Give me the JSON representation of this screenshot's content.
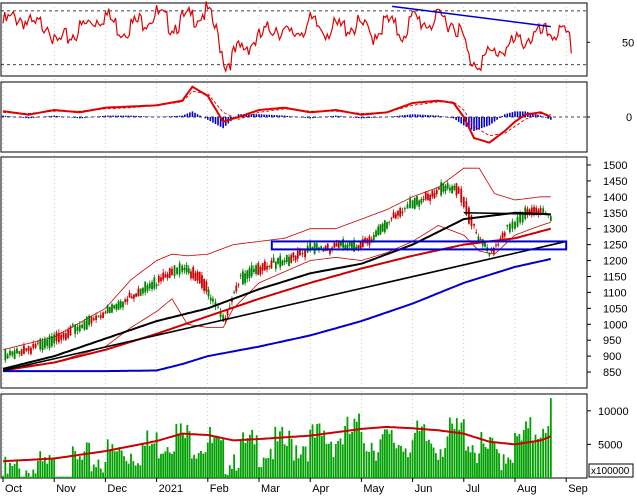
{
  "chart_data": [
    {
      "type": "line",
      "panel": "oscillator",
      "ylim": [
        20,
        85
      ],
      "yticks": [
        50
      ],
      "reference_lines": [
        78,
        30
      ],
      "series": [
        {
          "color": "#e00000",
          "x_months": [
            0,
            0.3,
            0.6,
            0.9,
            1.0,
            1.3,
            1.6,
            2.0,
            2.3,
            2.6,
            3.0,
            3.3,
            3.6,
            4.0,
            4.2,
            4.35,
            4.6,
            5.0,
            5.3,
            5.6,
            6.0,
            6.3,
            6.6,
            7.0,
            7.2,
            7.5,
            7.8,
            8.0,
            8.3,
            8.6,
            8.85,
            9.0,
            9.1,
            9.3,
            9.6,
            9.9,
            10.2,
            10.5,
            10.8,
            11.0,
            11.1
          ],
          "values": [
            72,
            78,
            68,
            74,
            52,
            60,
            70,
            80,
            66,
            72,
            80,
            70,
            76,
            82,
            60,
            35,
            48,
            58,
            70,
            60,
            72,
            66,
            68,
            70,
            60,
            74,
            62,
            76,
            72,
            76,
            70,
            58,
            40,
            38,
            46,
            52,
            58,
            62,
            64,
            60,
            52
          ]
        }
      ],
      "trendline": {
        "color": "#0000cc",
        "x_months": [
          7.6,
          10.7
        ],
        "values": [
          82,
          64
        ]
      }
    },
    {
      "type": "line",
      "panel": "macd",
      "ylim": [
        -30,
        30
      ],
      "yticks": [
        0
      ],
      "series": [
        {
          "color": "#e00000",
          "x_months": [
            0,
            0.5,
            1.0,
            1.5,
            2.0,
            2.5,
            3.0,
            3.5,
            3.7,
            4.0,
            4.3,
            4.6,
            5.0,
            5.5,
            6.0,
            6.5,
            7.0,
            7.5,
            8.0,
            8.5,
            8.8,
            9.0,
            9.2,
            9.5,
            9.8,
            10.0,
            10.2,
            10.5,
            10.7
          ],
          "values": [
            5,
            2,
            6,
            4,
            8,
            9,
            10,
            14,
            26,
            18,
            -4,
            0,
            6,
            8,
            4,
            6,
            2,
            4,
            12,
            14,
            12,
            0,
            -18,
            -22,
            -12,
            -4,
            2,
            4,
            0
          ]
        },
        {
          "color": "#e00000",
          "dashed": true,
          "x_months": [
            0,
            0.5,
            1.0,
            1.5,
            2.0,
            2.5,
            3.0,
            3.5,
            3.7,
            4.0,
            4.3,
            4.6,
            5.0,
            5.5,
            6.0,
            6.5,
            7.0,
            7.5,
            8.0,
            8.5,
            8.8,
            9.0,
            9.2,
            9.5,
            9.8,
            10.0,
            10.2,
            10.5,
            10.7
          ],
          "values": [
            4,
            3,
            5,
            5,
            7,
            8,
            10,
            13,
            22,
            20,
            4,
            -2,
            4,
            7,
            5,
            5,
            3,
            4,
            10,
            13,
            13,
            6,
            -8,
            -16,
            -14,
            -8,
            -2,
            3,
            2
          ]
        }
      ],
      "histogram_color": "#0000cc"
    },
    {
      "type": "line",
      "panel": "price",
      "ylim": [
        800,
        1525
      ],
      "yticks": [
        850,
        900,
        950,
        1000,
        1050,
        1100,
        1150,
        1200,
        1250,
        1300,
        1350,
        1400,
        1450,
        1500
      ],
      "ohlc_colors": {
        "up": "#008000",
        "down": "#cc0000"
      },
      "closes": {
        "x_months": [
          0,
          0.5,
          1.0,
          1.5,
          2.0,
          2.3,
          2.6,
          3.0,
          3.3,
          3.5,
          3.8,
          4.1,
          4.3,
          4.6,
          4.9,
          5.2,
          5.5,
          5.8,
          6.0,
          6.3,
          6.6,
          6.9,
          7.2,
          7.5,
          7.8,
          8.0,
          8.3,
          8.6,
          8.9,
          9.0,
          9.2,
          9.5,
          9.8,
          10.0,
          10.2,
          10.5,
          10.7
        ],
        "values": [
          910,
          930,
          965,
          1000,
          1050,
          1080,
          1110,
          1150,
          1180,
          1190,
          1160,
          1080,
          1020,
          1150,
          1180,
          1195,
          1210,
          1230,
          1250,
          1245,
          1260,
          1255,
          1280,
          1330,
          1370,
          1390,
          1410,
          1440,
          1430,
          1380,
          1300,
          1230,
          1300,
          1330,
          1360,
          1370,
          1335
        ]
      },
      "series": [
        {
          "name": "",
          "color": "#000000",
          "x_months": [
            0,
            1,
            2,
            3,
            4,
            5,
            6,
            7,
            8,
            9,
            10,
            10.7
          ],
          "values": [
            860,
            900,
            955,
            1010,
            1050,
            1110,
            1160,
            1190,
            1250,
            1330,
            1350,
            1345
          ]
        },
        {
          "name": "",
          "color": "#cc0000",
          "x_months": [
            0,
            1,
            2,
            3,
            4,
            5,
            6,
            7,
            8,
            9,
            10,
            10.7
          ],
          "values": [
            855,
            880,
            920,
            970,
            1025,
            1080,
            1130,
            1175,
            1215,
            1250,
            1270,
            1300
          ]
        },
        {
          "name": "",
          "color": "#0000cc",
          "x_months": [
            0,
            1,
            2,
            3,
            3.5,
            4,
            5,
            6,
            7,
            8,
            9,
            10,
            10.7
          ],
          "values": [
            853,
            853,
            853,
            855,
            875,
            900,
            930,
            965,
            1010,
            1065,
            1130,
            1180,
            1205
          ]
        }
      ],
      "bollinger": {
        "color": "#cc0000",
        "upper": {
          "x_months": [
            0,
            1,
            2,
            2.5,
            3,
            3.3,
            3.6,
            4.0,
            4.5,
            5,
            5.5,
            6,
            6.5,
            7,
            7.5,
            8,
            8.5,
            9,
            9.3,
            9.6,
            10,
            10.5,
            10.7
          ],
          "values": [
            920,
            960,
            1050,
            1140,
            1200,
            1220,
            1215,
            1220,
            1250,
            1260,
            1270,
            1300,
            1300,
            1330,
            1360,
            1400,
            1430,
            1490,
            1490,
            1410,
            1390,
            1400,
            1400
          ]
        },
        "lower": {
          "x_months": [
            0,
            1,
            2,
            2.5,
            3,
            3.3,
            3.6,
            4.0,
            4.3,
            4.5,
            5,
            5.5,
            6,
            6.5,
            7,
            7.5,
            8,
            8.5,
            9,
            9.3,
            9.6,
            10,
            10.5,
            10.7
          ],
          "values": [
            860,
            880,
            930,
            990,
            1040,
            1080,
            1000,
            990,
            990,
            1050,
            1130,
            1165,
            1200,
            1210,
            1200,
            1225,
            1260,
            1310,
            1280,
            1230,
            1220,
            1280,
            1310,
            1320
          ]
        }
      },
      "trendlines": [
        {
          "color": "#000000",
          "x_months": [
            0,
            11.0
          ],
          "values": [
            855,
            1260
          ]
        },
        {
          "color": "#000000",
          "x_months": [
            9.0,
            10.7
          ],
          "values": [
            1350,
            1345
          ]
        }
      ],
      "support_zone": {
        "color": "#0000cc",
        "x_months": [
          5.25,
          11.0
        ],
        "range": [
          1235,
          1260
        ]
      }
    },
    {
      "type": "bar",
      "panel": "volume",
      "unit": "x100000",
      "ylim": [
        0,
        12500
      ],
      "yticks": [
        5000,
        10000
      ],
      "bar_color": "#00a000",
      "bars": {
        "x_months": [
          0,
          0.5,
          1.0,
          1.5,
          2.0,
          2.5,
          3.0,
          3.3,
          3.6,
          4.0,
          4.3,
          4.6,
          5.0,
          5.5,
          6.0,
          6.5,
          7.0,
          7.2,
          7.5,
          8.0,
          8.5,
          9.0,
          9.3,
          9.6,
          10.0,
          10.3,
          10.5,
          10.7
        ],
        "values": [
          1800,
          2800,
          2600,
          3500,
          4800,
          5500,
          6500,
          8000,
          7200,
          7000,
          4500,
          5500,
          6000,
          6200,
          7000,
          7400,
          8500,
          7000,
          6500,
          7200,
          6800,
          8500,
          5500,
          5000,
          6000,
          8000,
          9500,
          11500
        ]
      },
      "series": [
        {
          "name": "",
          "color": "#cc0000",
          "x_months": [
            0,
            1,
            2,
            3,
            3.5,
            4,
            4.5,
            5,
            6,
            7,
            7.5,
            8,
            8.5,
            9,
            9.5,
            10,
            10.5,
            10.7
          ],
          "values": [
            2500,
            2900,
            4000,
            5500,
            6600,
            6400,
            5600,
            5800,
            6300,
            7300,
            7600,
            7400,
            7100,
            6600,
            5400,
            5000,
            5600,
            6200
          ]
        }
      ]
    }
  ],
  "axes": {
    "month_labels": [
      "Oct",
      "Nov",
      "Dec",
      "2021",
      "Feb",
      "Mar",
      "Apr",
      "May",
      "Jun",
      "Jul",
      "Aug",
      "Sep"
    ],
    "volume_unit_label": "x100000"
  }
}
